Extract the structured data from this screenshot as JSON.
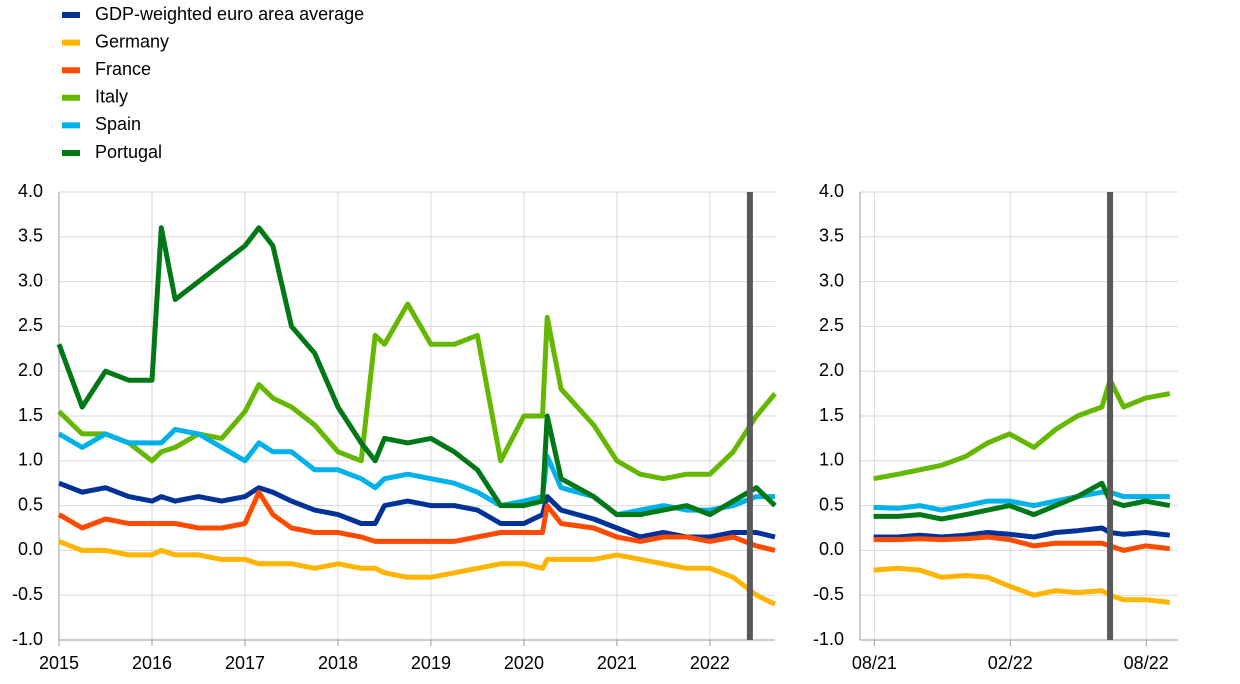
{
  "chart_data": [
    {
      "type": "line",
      "x": [
        2015,
        2015.25,
        2015.5,
        2015.75,
        2016,
        2016.1,
        2016.25,
        2016.5,
        2016.75,
        2017,
        2017.15,
        2017.3,
        2017.5,
        2017.75,
        2018,
        2018.25,
        2018.4,
        2018.5,
        2018.75,
        2019,
        2019.25,
        2019.5,
        2019.75,
        2020,
        2020.2,
        2020.25,
        2020.4,
        2020.75,
        2021,
        2021.25,
        2021.5,
        2021.75,
        2022,
        2022.25,
        2022.5,
        2022.7
      ],
      "xlim": [
        2015,
        2022.7
      ],
      "xticks": [
        2015,
        2016,
        2017,
        2018,
        2019,
        2020,
        2021,
        2022
      ],
      "ylim": [
        -1,
        4
      ],
      "yticks": [
        {
          "value": -1,
          "label": "-1.0"
        },
        -0.5,
        {
          "value": 0,
          "label": "0.0"
        },
        0.5,
        {
          "value": 1,
          "label": "1.0"
        },
        1.5,
        {
          "value": 2,
          "label": "2.0"
        },
        2.5,
        {
          "value": 3,
          "label": "3.0"
        },
        3.5,
        {
          "value": 4,
          "label": "4.0"
        }
      ],
      "grid": true,
      "vline": 2022.43,
      "series": [
        {
          "name": "GDP-weighted euro area average",
          "color": "#003299",
          "values": [
            0.75,
            0.65,
            0.7,
            0.6,
            0.55,
            0.6,
            0.55,
            0.6,
            0.55,
            0.6,
            0.7,
            0.65,
            0.55,
            0.45,
            0.4,
            0.3,
            0.3,
            0.5,
            0.55,
            0.5,
            0.5,
            0.45,
            0.3,
            0.3,
            0.4,
            0.6,
            0.45,
            0.35,
            0.25,
            0.15,
            0.2,
            0.15,
            0.15,
            0.2,
            0.2,
            0.15
          ]
        },
        {
          "name": "Germany",
          "color": "#ffb400",
          "values": [
            0.1,
            0.0,
            0.0,
            -0.05,
            -0.05,
            0.0,
            -0.05,
            -0.05,
            -0.1,
            -0.1,
            -0.15,
            -0.15,
            -0.15,
            -0.2,
            -0.15,
            -0.2,
            -0.2,
            -0.25,
            -0.3,
            -0.3,
            -0.25,
            -0.2,
            -0.15,
            -0.15,
            -0.2,
            -0.1,
            -0.1,
            -0.1,
            -0.05,
            -0.1,
            -0.15,
            -0.2,
            -0.2,
            -0.3,
            -0.5,
            -0.6
          ]
        },
        {
          "name": "France",
          "color": "#ff4b00",
          "values": [
            0.4,
            0.25,
            0.35,
            0.3,
            0.3,
            0.3,
            0.3,
            0.25,
            0.25,
            0.3,
            0.65,
            0.4,
            0.25,
            0.2,
            0.2,
            0.15,
            0.1,
            0.1,
            0.1,
            0.1,
            0.1,
            0.15,
            0.2,
            0.2,
            0.2,
            0.5,
            0.3,
            0.25,
            0.15,
            0.1,
            0.15,
            0.15,
            0.1,
            0.15,
            0.05,
            0.0
          ]
        },
        {
          "name": "Italy",
          "color": "#65b800",
          "values": [
            1.55,
            1.3,
            1.3,
            1.2,
            1.0,
            1.1,
            1.15,
            1.3,
            1.25,
            1.55,
            1.85,
            1.7,
            1.6,
            1.4,
            1.1,
            1.0,
            2.4,
            2.3,
            2.75,
            2.3,
            2.3,
            2.4,
            1.0,
            1.5,
            1.5,
            2.6,
            1.8,
            1.4,
            1.0,
            0.85,
            0.8,
            0.85,
            0.85,
            1.1,
            1.5,
            1.75
          ]
        },
        {
          "name": "Spain",
          "color": "#00b1ea",
          "values": [
            1.3,
            1.15,
            1.3,
            1.2,
            1.2,
            1.2,
            1.35,
            1.3,
            1.15,
            1.0,
            1.2,
            1.1,
            1.1,
            0.9,
            0.9,
            0.8,
            0.7,
            0.8,
            0.85,
            0.8,
            0.75,
            0.65,
            0.5,
            0.55,
            0.6,
            1.05,
            0.7,
            0.6,
            0.4,
            0.45,
            0.5,
            0.45,
            0.45,
            0.5,
            0.6,
            0.6
          ]
        },
        {
          "name": "Portugal",
          "color": "#007816",
          "values": [
            2.3,
            1.6,
            2.0,
            1.9,
            1.9,
            3.6,
            2.8,
            3.0,
            3.2,
            3.4,
            3.6,
            3.4,
            2.5,
            2.2,
            1.6,
            1.2,
            1.0,
            1.25,
            1.2,
            1.25,
            1.1,
            0.9,
            0.5,
            0.5,
            0.55,
            1.5,
            0.8,
            0.6,
            0.4,
            0.4,
            0.45,
            0.5,
            0.4,
            0.55,
            0.7,
            0.5
          ]
        }
      ]
    },
    {
      "type": "line",
      "x": [
        2021.58,
        2021.67,
        2021.75,
        2021.83,
        2021.92,
        2022.0,
        2022.08,
        2022.17,
        2022.25,
        2022.33,
        2022.42,
        2022.45,
        2022.5,
        2022.58,
        2022.67
      ],
      "xlim": [
        2021.53,
        2022.7
      ],
      "xticks": [
        {
          "value": 2021.583,
          "label": "08/21"
        },
        {
          "value": 2022.083,
          "label": "02/22"
        },
        {
          "value": 2022.583,
          "label": "08/22"
        }
      ],
      "ylim": [
        -1,
        4
      ],
      "yticks": [
        {
          "value": -1,
          "label": "-1.0"
        },
        -0.5,
        {
          "value": 0,
          "label": "0.0"
        },
        0.5,
        {
          "value": 1,
          "label": "1.0"
        },
        1.5,
        {
          "value": 2,
          "label": "2.0"
        },
        2.5,
        {
          "value": 3,
          "label": "3.0"
        },
        3.5,
        {
          "value": 4,
          "label": "4.0"
        }
      ],
      "grid": true,
      "vline": 2022.45,
      "series": [
        {
          "color": "#003299",
          "values": [
            0.15,
            0.15,
            0.17,
            0.15,
            0.17,
            0.2,
            0.18,
            0.15,
            0.2,
            0.22,
            0.25,
            0.2,
            0.18,
            0.2,
            0.17
          ]
        },
        {
          "color": "#ffb400",
          "values": [
            -0.22,
            -0.2,
            -0.22,
            -0.3,
            -0.28,
            -0.3,
            -0.4,
            -0.5,
            -0.45,
            -0.47,
            -0.45,
            -0.5,
            -0.55,
            -0.55,
            -0.58
          ]
        },
        {
          "color": "#ff4b00",
          "values": [
            0.12,
            0.12,
            0.13,
            0.12,
            0.13,
            0.15,
            0.12,
            0.05,
            0.08,
            0.08,
            0.08,
            0.05,
            0.0,
            0.05,
            0.02
          ]
        },
        {
          "color": "#65b800",
          "values": [
            0.8,
            0.85,
            0.9,
            0.95,
            1.05,
            1.2,
            1.3,
            1.15,
            1.35,
            1.5,
            1.6,
            1.9,
            1.6,
            1.7,
            1.75
          ]
        },
        {
          "color": "#00b1ea",
          "values": [
            0.48,
            0.47,
            0.5,
            0.45,
            0.5,
            0.55,
            0.55,
            0.5,
            0.55,
            0.6,
            0.65,
            0.65,
            0.6,
            0.6,
            0.6
          ]
        },
        {
          "color": "#007816",
          "values": [
            0.38,
            0.38,
            0.4,
            0.35,
            0.4,
            0.45,
            0.5,
            0.4,
            0.5,
            0.6,
            0.75,
            0.55,
            0.5,
            0.55,
            0.5
          ]
        }
      ]
    }
  ]
}
